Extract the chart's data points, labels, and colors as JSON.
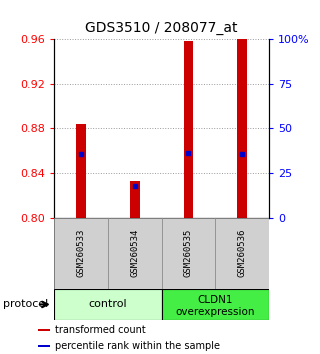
{
  "title": "GDS3510 / 208077_at",
  "categories": [
    "GSM260533",
    "GSM260534",
    "GSM260535",
    "GSM260536"
  ],
  "bar_bottoms": [
    0.8,
    0.8,
    0.8,
    0.8
  ],
  "bar_tops": [
    0.884,
    0.833,
    0.958,
    0.96
  ],
  "blue_marks": [
    0.857,
    0.828,
    0.858,
    0.857
  ],
  "bar_color": "#cc0000",
  "blue_color": "#0000cc",
  "ylim": [
    0.8,
    0.96
  ],
  "yticks_left": [
    0.8,
    0.84,
    0.88,
    0.92,
    0.96
  ],
  "yticks_right": [
    0,
    25,
    50,
    75,
    100
  ],
  "yticks_right_labels": [
    "0",
    "25",
    "50",
    "75",
    "100%"
  ],
  "groups": [
    {
      "label": "control",
      "start": 0,
      "end": 1,
      "color": "#aaffaa"
    },
    {
      "label": "CLDN1\noverexpression",
      "start": 2,
      "end": 3,
      "color": "#44ee44"
    }
  ],
  "protocol_label": "protocol",
  "legend_items": [
    {
      "color": "#cc0000",
      "label": "transformed count"
    },
    {
      "color": "#0000cc",
      "label": "percentile rank within the sample"
    }
  ],
  "title_fontsize": 10,
  "tick_fontsize": 8,
  "bar_width": 0.18,
  "bg_color": "#ffffff",
  "grid_color": "#999999",
  "label_box_color": "#d0d0d0",
  "label_box_edge_color": "#888888"
}
